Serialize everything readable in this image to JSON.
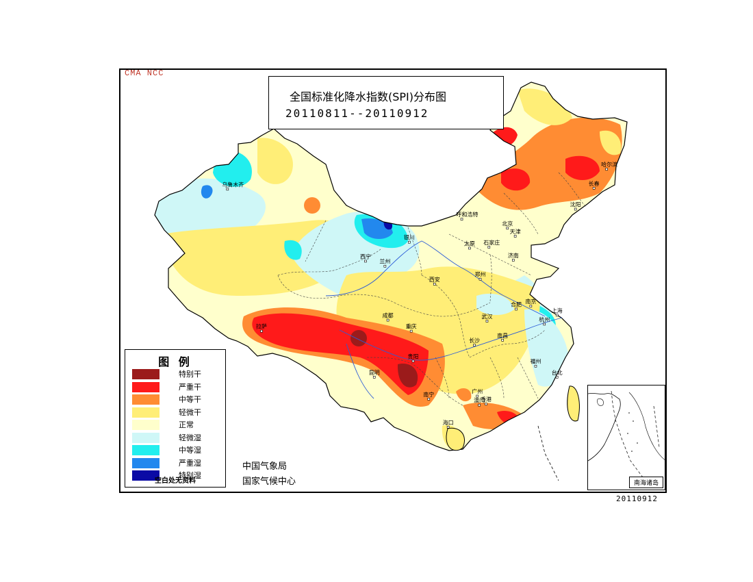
{
  "watermark": "CMA NCC",
  "title": {
    "main": "全国标准化降水指数(SPI)分布图",
    "dates": "20110811--20110912"
  },
  "legend": {
    "title": "图 例",
    "items": [
      {
        "label": "特别干",
        "color": "#9b1b1b"
      },
      {
        "label": "严重干",
        "color": "#ff1a1a"
      },
      {
        "label": "中等干",
        "color": "#ff8c33"
      },
      {
        "label": "轻微干",
        "color": "#ffee77"
      },
      {
        "label": "正常",
        "color": "#ffffcc"
      },
      {
        "label": "轻微湿",
        "color": "#cff7f7"
      },
      {
        "label": "中等湿",
        "color": "#22eeee"
      },
      {
        "label": "严重湿",
        "color": "#2288ee"
      },
      {
        "label": "特别湿",
        "color": "#0a0aa5"
      }
    ],
    "note": "空白处无资料"
  },
  "agency": {
    "line1": "中国气象局",
    "line2": "国家气候中心"
  },
  "inset": {
    "label": "南海诸岛"
  },
  "date_stamp": "20110912",
  "cities": [
    {
      "name": "乌鲁木齐",
      "lon": 87.6,
      "lat": 43.8
    },
    {
      "name": "拉萨",
      "lon": 91.1,
      "lat": 29.6
    },
    {
      "name": "西宁",
      "lon": 101.8,
      "lat": 36.6
    },
    {
      "name": "兰州",
      "lon": 103.8,
      "lat": 36.1
    },
    {
      "name": "银川",
      "lon": 106.3,
      "lat": 38.5
    },
    {
      "name": "呼和浩特",
      "lon": 111.7,
      "lat": 40.8
    },
    {
      "name": "哈尔滨",
      "lon": 126.6,
      "lat": 45.8
    },
    {
      "name": "长春",
      "lon": 125.3,
      "lat": 43.9
    },
    {
      "name": "沈阳",
      "lon": 123.4,
      "lat": 41.8
    },
    {
      "name": "北京",
      "lon": 116.4,
      "lat": 39.9
    },
    {
      "name": "天津",
      "lon": 117.2,
      "lat": 39.1
    },
    {
      "name": "太原",
      "lon": 112.5,
      "lat": 37.9
    },
    {
      "name": "石家庄",
      "lon": 114.5,
      "lat": 38.0
    },
    {
      "name": "济南",
      "lon": 117.0,
      "lat": 36.7
    },
    {
      "name": "西安",
      "lon": 108.9,
      "lat": 34.3
    },
    {
      "name": "郑州",
      "lon": 113.6,
      "lat": 34.8
    },
    {
      "name": "合肥",
      "lon": 117.3,
      "lat": 31.8
    },
    {
      "name": "南京",
      "lon": 118.8,
      "lat": 32.1
    },
    {
      "name": "上海",
      "lon": 121.5,
      "lat": 31.2
    },
    {
      "name": "杭州",
      "lon": 120.2,
      "lat": 30.3
    },
    {
      "name": "成都",
      "lon": 104.1,
      "lat": 30.7
    },
    {
      "name": "重庆",
      "lon": 106.5,
      "lat": 29.6
    },
    {
      "name": "武汉",
      "lon": 114.3,
      "lat": 30.6
    },
    {
      "name": "长沙",
      "lon": 113.0,
      "lat": 28.2
    },
    {
      "name": "南昌",
      "lon": 115.9,
      "lat": 28.7
    },
    {
      "name": "福州",
      "lon": 119.3,
      "lat": 26.1
    },
    {
      "name": "贵阳",
      "lon": 106.7,
      "lat": 26.6
    },
    {
      "name": "昆明",
      "lon": 102.7,
      "lat": 25.0
    },
    {
      "name": "南宁",
      "lon": 108.3,
      "lat": 22.8
    },
    {
      "name": "广州",
      "lon": 113.3,
      "lat": 23.1
    },
    {
      "name": "澳门",
      "lon": 113.5,
      "lat": 22.2
    },
    {
      "name": "香港",
      "lon": 114.2,
      "lat": 22.3
    },
    {
      "name": "台北",
      "lon": 121.5,
      "lat": 25.0
    },
    {
      "name": "海口",
      "lon": 110.3,
      "lat": 20.0
    }
  ]
}
